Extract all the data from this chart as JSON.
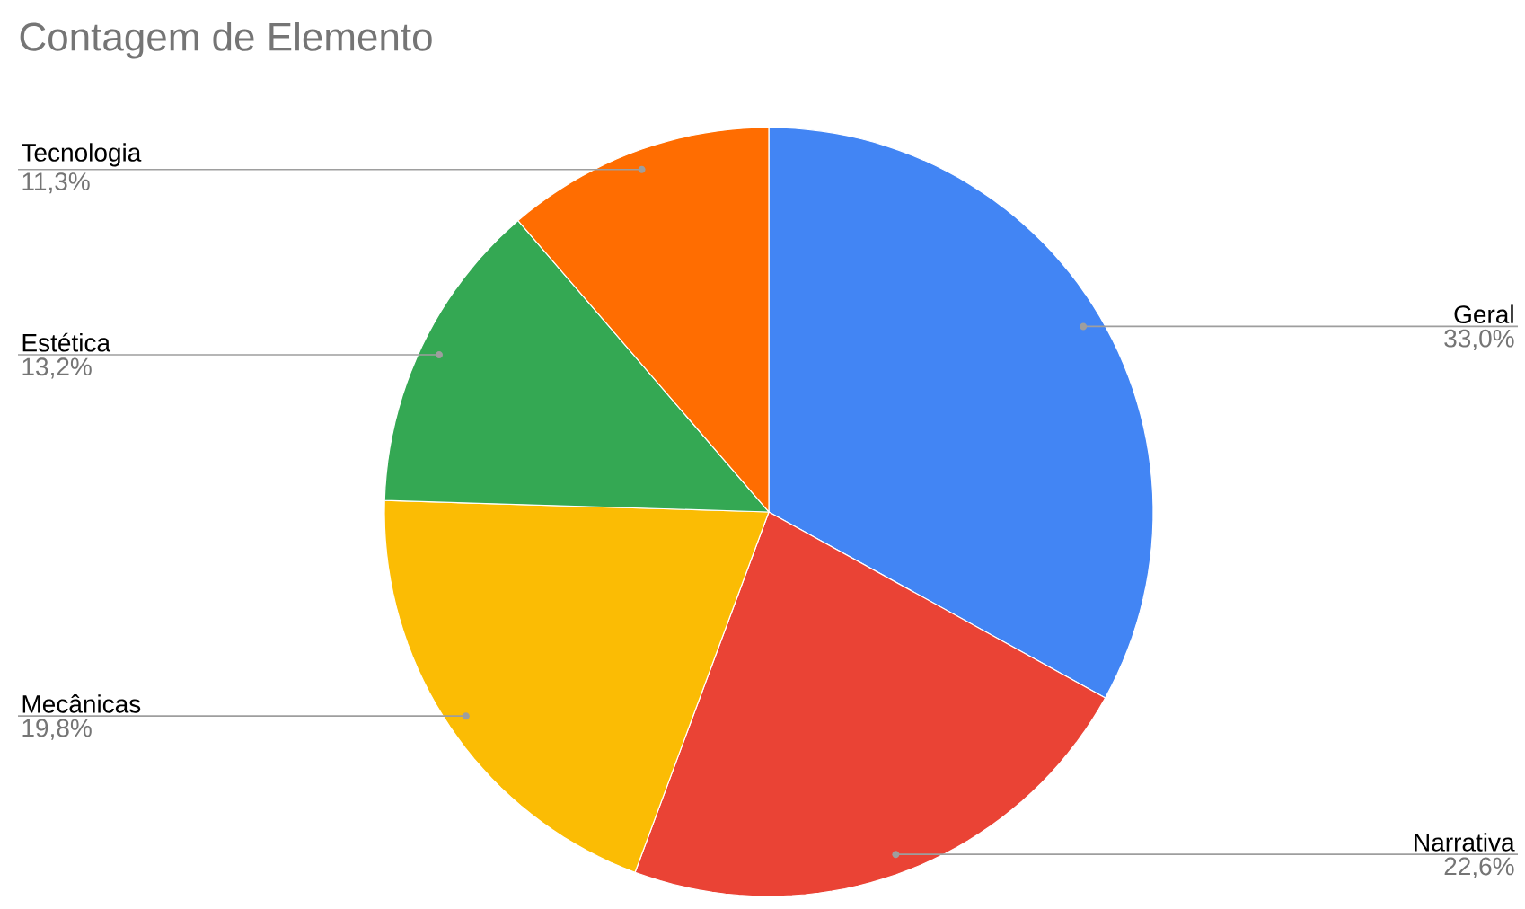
{
  "chart_data": {
    "type": "pie",
    "title": "Contagem de Elemento",
    "categories": [
      "Geral",
      "Narrativa",
      "Mecânicas",
      "Estética",
      "Tecnologia"
    ],
    "values": [
      33.0,
      22.6,
      19.8,
      13.2,
      11.3
    ],
    "colors": [
      "#4285f4",
      "#ea4335",
      "#fbbc04",
      "#34a853",
      "#ff6d01"
    ],
    "value_labels": [
      "33,0%",
      "22,6%",
      "19,8%",
      "13,2%",
      "11,3%"
    ]
  }
}
